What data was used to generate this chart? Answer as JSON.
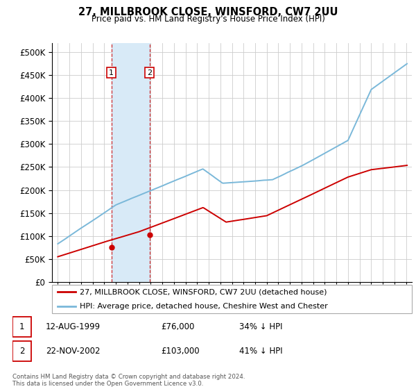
{
  "title": "27, MILLBROOK CLOSE, WINSFORD, CW7 2UU",
  "subtitle": "Price paid vs. HM Land Registry's House Price Index (HPI)",
  "legend_line1": "27, MILLBROOK CLOSE, WINSFORD, CW7 2UU (detached house)",
  "legend_line2": "HPI: Average price, detached house, Cheshire West and Chester",
  "transaction1_date": "12-AUG-1999",
  "transaction1_price": "£76,000",
  "transaction1_hpi": "34% ↓ HPI",
  "transaction2_date": "22-NOV-2002",
  "transaction2_price": "£103,000",
  "transaction2_hpi": "41% ↓ HPI",
  "footnote": "Contains HM Land Registry data © Crown copyright and database right 2024.\nThis data is licensed under the Open Government Licence v3.0.",
  "sale1_year": 1999.62,
  "sale1_price": 76000,
  "sale2_year": 2002.9,
  "sale2_price": 103000,
  "hpi_color": "#7ab8d9",
  "price_color": "#cc0000",
  "shade_color": "#d8eaf7",
  "ylim_min": 0,
  "ylim_max": 520000,
  "yticks": [
    0,
    50000,
    100000,
    150000,
    200000,
    250000,
    300000,
    350000,
    400000,
    450000,
    500000
  ],
  "xmin": 1994.5,
  "xmax": 2025.5
}
